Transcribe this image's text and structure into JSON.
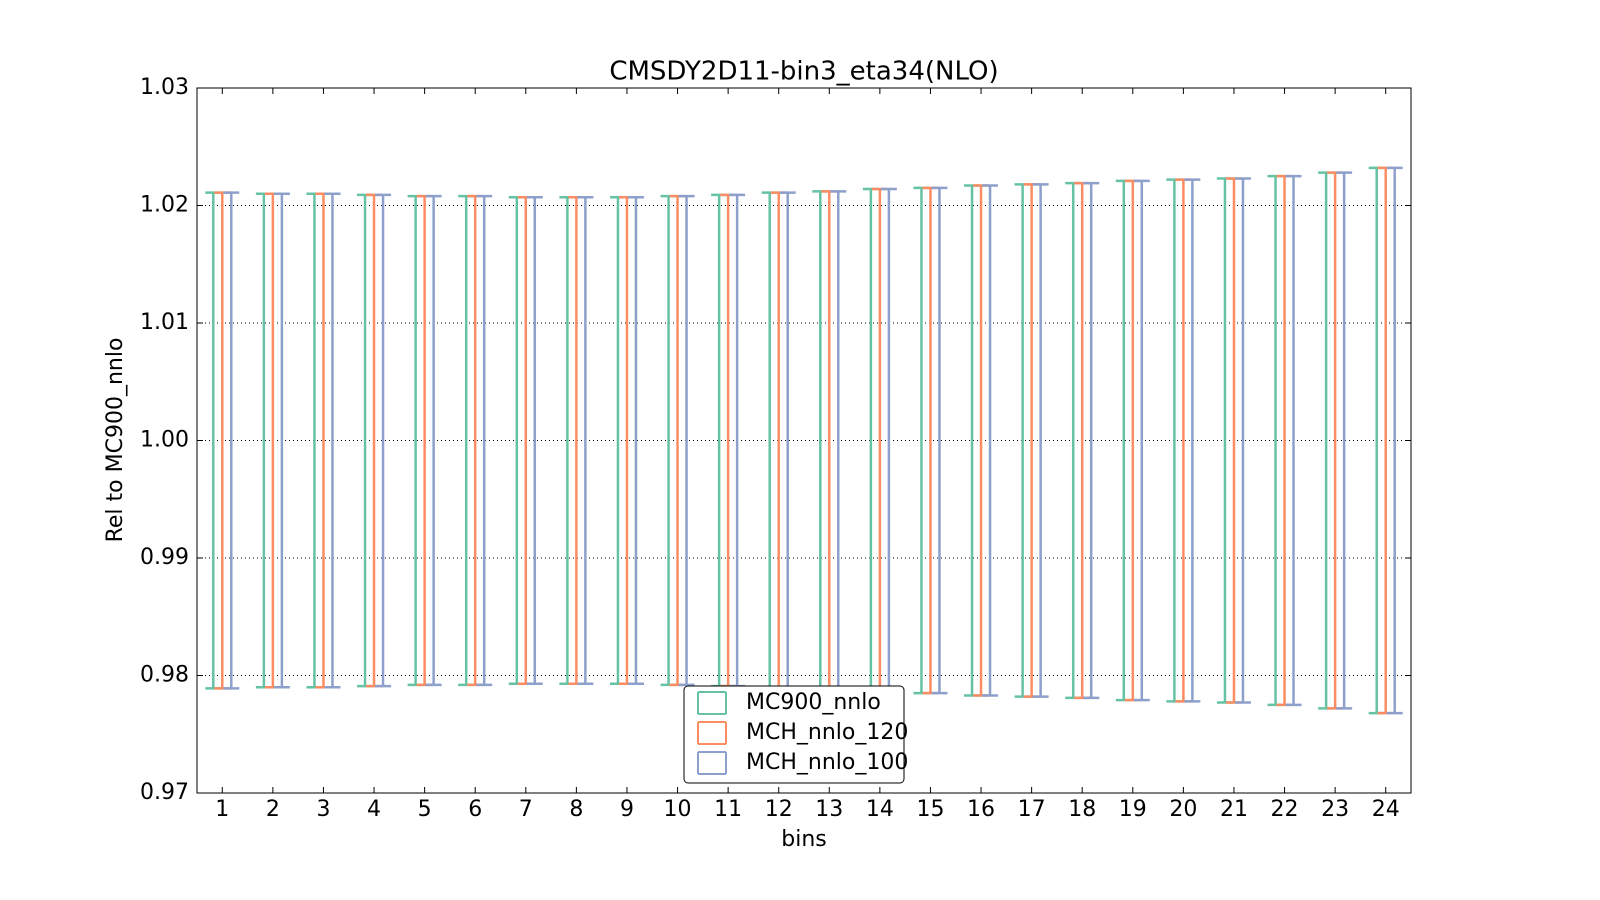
{
  "chart_data": {
    "type": "errorbar",
    "title": "CMSDY2D11-bin3_eta34(NLO)",
    "xlabel": "bins",
    "ylabel": "Rel to MC900_nnlo",
    "x": [
      1,
      2,
      3,
      4,
      5,
      6,
      7,
      8,
      9,
      10,
      11,
      12,
      13,
      14,
      15,
      16,
      17,
      18,
      19,
      20,
      21,
      22,
      23,
      24
    ],
    "xlim": [
      0.5,
      24.5
    ],
    "xticks": [
      1,
      2,
      3,
      4,
      5,
      6,
      7,
      8,
      9,
      10,
      11,
      12,
      13,
      14,
      15,
      16,
      17,
      18,
      19,
      20,
      21,
      22,
      23,
      24
    ],
    "ylim": [
      0.97,
      1.03
    ],
    "yticks": [
      0.97,
      0.98,
      0.99,
      {
        "value": 1.0,
        "label": "1.00"
      },
      1.01,
      1.02,
      1.03
    ],
    "grid": true,
    "legend": "lower center",
    "series": [
      {
        "name": "MC900_nnlo",
        "color": "#66c2a5",
        "high": [
          1.0211,
          1.021,
          1.021,
          1.0209,
          1.0208,
          1.0208,
          1.0207,
          1.0207,
          1.0207,
          1.0208,
          1.0209,
          1.0211,
          1.0212,
          1.0214,
          1.0215,
          1.0217,
          1.0218,
          1.0219,
          1.0221,
          1.0222,
          1.0223,
          1.0225,
          1.0228,
          1.0232
        ],
        "low": [
          0.9789,
          0.979,
          0.979,
          0.9791,
          0.9792,
          0.9792,
          0.9793,
          0.9793,
          0.9793,
          0.9792,
          0.9791,
          0.9789,
          0.9788,
          0.9786,
          0.9785,
          0.9783,
          0.9782,
          0.9781,
          0.9779,
          0.9778,
          0.9777,
          0.9775,
          0.9772,
          0.9768
        ]
      },
      {
        "name": "MCH_nnlo_120",
        "color": "#fc8d62",
        "high": [
          1.0211,
          1.021,
          1.021,
          1.0209,
          1.0208,
          1.0208,
          1.0207,
          1.0207,
          1.0207,
          1.0208,
          1.0209,
          1.0211,
          1.0212,
          1.0214,
          1.0215,
          1.0217,
          1.0218,
          1.0219,
          1.0221,
          1.0222,
          1.0223,
          1.0225,
          1.0228,
          1.0232
        ],
        "low": [
          0.9789,
          0.979,
          0.979,
          0.9791,
          0.9792,
          0.9792,
          0.9793,
          0.9793,
          0.9793,
          0.9792,
          0.9791,
          0.9789,
          0.9788,
          0.9786,
          0.9785,
          0.9783,
          0.9782,
          0.9781,
          0.9779,
          0.9778,
          0.9777,
          0.9775,
          0.9772,
          0.9768
        ]
      },
      {
        "name": "MCH_nnlo_100",
        "color": "#8da0cb",
        "high": [
          1.0211,
          1.021,
          1.021,
          1.0209,
          1.0208,
          1.0208,
          1.0207,
          1.0207,
          1.0207,
          1.0208,
          1.0209,
          1.0211,
          1.0212,
          1.0214,
          1.0215,
          1.0217,
          1.0218,
          1.0219,
          1.0221,
          1.0222,
          1.0223,
          1.0225,
          1.0228,
          1.0232
        ],
        "low": [
          0.9789,
          0.979,
          0.979,
          0.9791,
          0.9792,
          0.9792,
          0.9793,
          0.9793,
          0.9793,
          0.9792,
          0.9791,
          0.9789,
          0.9788,
          0.9786,
          0.9785,
          0.9783,
          0.9782,
          0.9781,
          0.9779,
          0.9778,
          0.9777,
          0.9775,
          0.9772,
          0.9768
        ]
      }
    ]
  }
}
